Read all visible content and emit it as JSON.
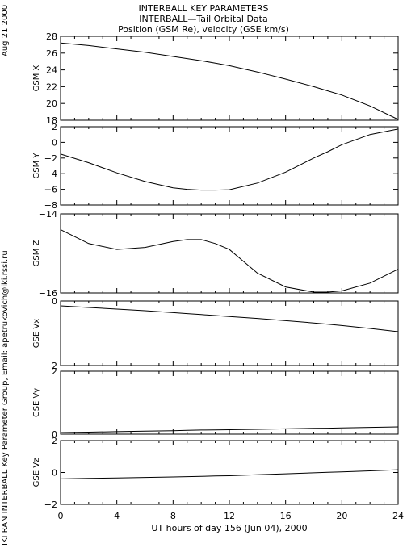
{
  "header": {
    "line1": "INTERBALL KEY PARAMETERS",
    "line2": "INTERBALL—Tail Orbital Data",
    "line3": "Position (GSM Re), velocity (GSE km/s)"
  },
  "side": {
    "date": "Aug 21 2000",
    "credit": "IKI RAN INTERBALL Key Parameter Group, Email: apetrukovich@iki.rssi.ru"
  },
  "chart_data": {
    "type": "line",
    "xlabel": "UT hours of day 156 (Jun 04), 2000",
    "xlim": [
      0,
      24
    ],
    "xticks": [
      0,
      4,
      8,
      12,
      16,
      20,
      24
    ],
    "x": [
      0,
      2,
      4,
      6,
      8,
      9,
      10,
      11,
      12,
      14,
      16,
      18,
      19,
      20,
      22,
      24
    ],
    "panels": [
      {
        "ylabel": "GSM X",
        "ylim": [
          18,
          28
        ],
        "yticks": [
          18,
          20,
          22,
          24,
          26,
          28
        ],
        "values": [
          27.2,
          26.9,
          26.5,
          26.1,
          25.6,
          25.35,
          25.1,
          24.8,
          24.5,
          23.75,
          22.9,
          22.0,
          21.5,
          21.0,
          19.7,
          18.1
        ]
      },
      {
        "ylabel": "GSM Y",
        "ylim": [
          -8,
          2
        ],
        "yticks": [
          -8,
          -6,
          -4,
          -2,
          0,
          2
        ],
        "values": [
          -1.5,
          -2.6,
          -3.9,
          -5.0,
          -5.8,
          -6.0,
          -6.1,
          -6.1,
          -6.05,
          -5.2,
          -3.8,
          -2.0,
          -1.2,
          -0.3,
          1.0,
          1.7
        ]
      },
      {
        "ylabel": "GSM Z",
        "ylim": [
          -16,
          -14
        ],
        "yticks": [
          -16,
          -14
        ],
        "values": [
          -14.4,
          -14.75,
          -14.9,
          -14.85,
          -14.7,
          -14.65,
          -14.65,
          -14.75,
          -14.9,
          -15.5,
          -15.85,
          -15.98,
          -15.98,
          -15.95,
          -15.75,
          -15.4
        ]
      },
      {
        "ylabel": "GSE Vx",
        "ylim": [
          -2,
          0
        ],
        "yticks": [
          -2,
          0
        ],
        "values": [
          -0.15,
          -0.2,
          -0.25,
          -0.3,
          -0.36,
          -0.39,
          -0.42,
          -0.45,
          -0.48,
          -0.54,
          -0.61,
          -0.68,
          -0.72,
          -0.76,
          -0.85,
          -0.95
        ]
      },
      {
        "ylabel": "GSE Vy",
        "ylim": [
          0,
          2
        ],
        "yticks": [
          0,
          2
        ],
        "values": [
          0.05,
          0.065,
          0.08,
          0.095,
          0.11,
          0.12,
          0.13,
          0.135,
          0.14,
          0.155,
          0.17,
          0.185,
          0.19,
          0.2,
          0.215,
          0.23
        ]
      },
      {
        "ylabel": "GSE Vz",
        "ylim": [
          -2,
          2
        ],
        "yticks": [
          -2,
          0,
          2
        ],
        "values": [
          -0.4,
          -0.37,
          -0.34,
          -0.31,
          -0.28,
          -0.26,
          -0.24,
          -0.22,
          -0.2,
          -0.14,
          -0.08,
          -0.02,
          0.01,
          0.04,
          0.1,
          0.17
        ]
      }
    ]
  }
}
